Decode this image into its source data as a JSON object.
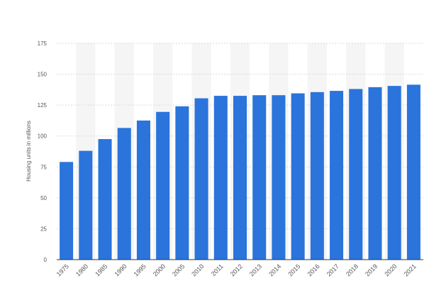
{
  "chart_data": {
    "type": "bar",
    "title": "",
    "xlabel": "",
    "ylabel": "Housing units in millions",
    "ylim": [
      0,
      175
    ],
    "yticks": [
      0,
      25,
      50,
      75,
      100,
      125,
      150,
      175
    ],
    "categories": [
      "1975",
      "1980",
      "1985",
      "1990",
      "1995",
      "2000",
      "2005",
      "2010",
      "2011",
      "2012",
      "2013",
      "2014",
      "2015",
      "2016",
      "2017",
      "2018",
      "2019",
      "2020",
      "2021"
    ],
    "values": [
      79,
      88,
      97.5,
      106.5,
      112.5,
      119.5,
      124,
      130.5,
      132.5,
      132.5,
      133,
      133,
      134.5,
      135.5,
      136.5,
      138,
      139.5,
      140.5,
      141.5
    ],
    "grid": true,
    "bar_color": "#2a74dc",
    "band_color": "#f5f5f5",
    "grid_color": "#d9d9d9",
    "text_color": "#555555"
  }
}
